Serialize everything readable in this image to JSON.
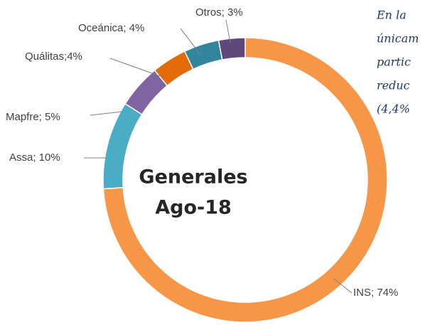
{
  "chart_data": {
    "type": "donut",
    "center_text": [
      "Generales",
      "Ago-18"
    ],
    "categories": [
      "INS",
      "Assa",
      "Mapfre",
      "Quálitas",
      "Oceánica",
      "Otros"
    ],
    "values": [
      74,
      10,
      5,
      4,
      4,
      3
    ],
    "value_labels": [
      "INS; 74%",
      "Assa; 10%",
      "Mapfre; 5%",
      "Quálitas;4%",
      "Oceánica; 4%",
      "Otros; 3%"
    ],
    "colors": [
      "#f79646",
      "#4bacc6",
      "#8064a2",
      "#e36c09",
      "#31859c",
      "#5f497a"
    ],
    "annotation": [
      "En la",
      "únicam",
      "partic",
      "reduc",
      "(4,4%"
    ]
  }
}
